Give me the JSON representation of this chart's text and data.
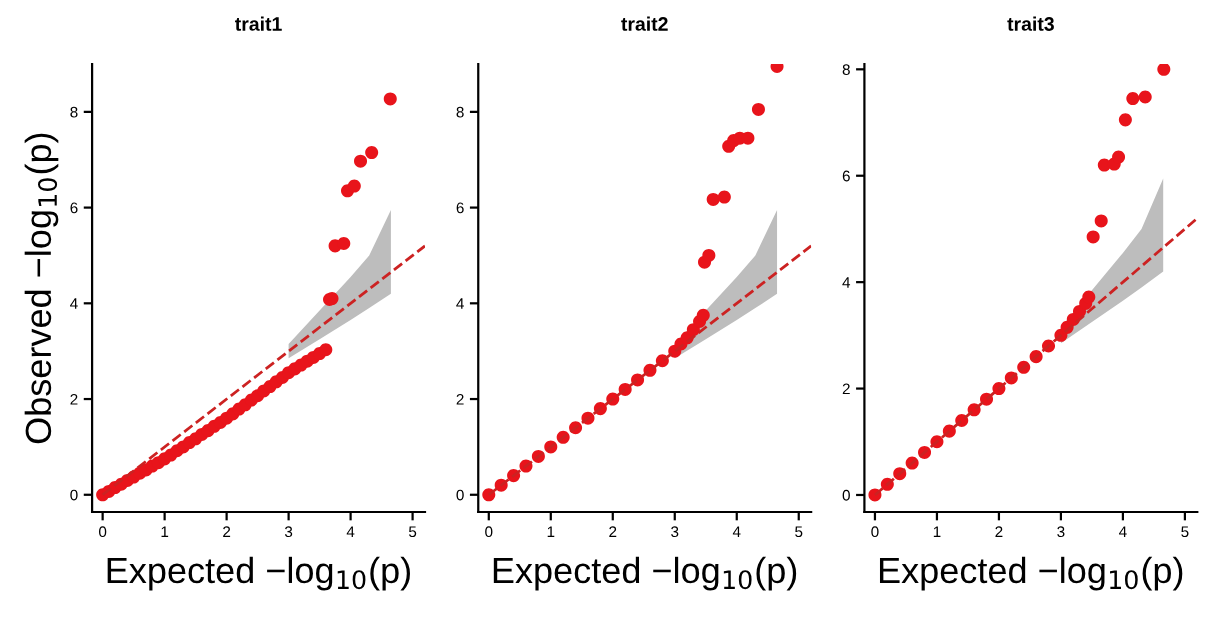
{
  "chart_data": [
    {
      "type": "scatter",
      "title": "trait1",
      "xlabel": "Expected −log$_{10}$(p)",
      "ylabel": "Observed −log$_{10}$(p)",
      "xlim": [
        -0.17,
        5.2
      ],
      "ylim": [
        -0.36,
        9.0
      ],
      "xticks": [
        0,
        1,
        2,
        3,
        4,
        5
      ],
      "yticks": [
        0,
        2,
        4,
        6,
        8
      ],
      "marker": "circle",
      "series": [
        {
          "type": "line",
          "color": "#cc2222",
          "line_style": "dashed",
          "marker": "none",
          "x": [
            0,
            3.0,
            3.5,
            4.0,
            4.3,
            4.65,
            5.2
          ],
          "values": [
            0,
            3.0,
            3.5,
            4.0,
            4.3,
            4.65,
            5.2
          ],
          "lower": [
            null,
            2.85,
            3.25,
            3.65,
            3.9,
            4.2,
            null
          ],
          "upper": [
            null,
            3.15,
            3.85,
            4.55,
            5.0,
            5.95,
            null
          ]
        },
        {
          "type": "scatter",
          "color": "#e8141b",
          "x": [
            0,
            0.1,
            0.2,
            0.3,
            0.4,
            0.5,
            0.6,
            0.7,
            0.8,
            0.9,
            1.0,
            1.1,
            1.2,
            1.3,
            1.4,
            1.5,
            1.6,
            1.7,
            1.8,
            1.9,
            2.0,
            2.1,
            2.2,
            2.3,
            2.4,
            2.5,
            2.6,
            2.7,
            2.8,
            2.9,
            3.0,
            3.1,
            3.2,
            3.3,
            3.4,
            3.5,
            3.6,
            3.66,
            3.7,
            3.75,
            3.89,
            3.95,
            4.06,
            4.16,
            4.34,
            4.64
          ],
          "values": [
            0,
            0.07,
            0.15,
            0.22,
            0.3,
            0.37,
            0.45,
            0.52,
            0.6,
            0.67,
            0.75,
            0.83,
            0.92,
            1.0,
            1.09,
            1.17,
            1.26,
            1.34,
            1.43,
            1.51,
            1.6,
            1.69,
            1.79,
            1.88,
            1.98,
            2.07,
            2.17,
            2.26,
            2.36,
            2.45,
            2.55,
            2.63,
            2.71,
            2.79,
            2.87,
            2.95,
            3.03,
            4.08,
            4.1,
            5.2,
            5.25,
            6.35,
            6.45,
            6.97,
            7.15,
            8.27
          ]
        }
      ]
    },
    {
      "type": "scatter",
      "title": "trait2",
      "xlabel": "Expected −log$_{10}$(p)",
      "xlim": [
        -0.17,
        5.2
      ],
      "ylim": [
        -0.36,
        9.0
      ],
      "xticks": [
        0,
        1,
        2,
        3,
        4,
        5
      ],
      "yticks": [
        0,
        2,
        4,
        6,
        8
      ],
      "marker": "circle",
      "series": [
        {
          "type": "line",
          "color": "#cc2222",
          "line_style": "dashed",
          "marker": "none",
          "x": [
            0,
            3.0,
            3.5,
            4.0,
            4.3,
            4.65,
            5.2
          ],
          "values": [
            0,
            3.0,
            3.5,
            4.0,
            4.3,
            4.65,
            5.2
          ],
          "lower": [
            null,
            2.85,
            3.25,
            3.65,
            3.9,
            4.2,
            null
          ],
          "upper": [
            null,
            3.15,
            3.85,
            4.55,
            5.0,
            5.95,
            null
          ]
        },
        {
          "type": "scatter",
          "color": "#e8141b",
          "x": [
            0,
            0.2,
            0.4,
            0.6,
            0.8,
            1.0,
            1.2,
            1.4,
            1.6,
            1.8,
            2.0,
            2.2,
            2.4,
            2.6,
            2.8,
            3.0,
            3.1,
            3.2,
            3.3,
            3.4,
            3.46,
            3.48,
            3.55,
            3.62,
            3.8,
            3.87,
            3.95,
            4.05,
            4.18,
            4.35,
            4.65
          ],
          "values": [
            0,
            0.2,
            0.4,
            0.6,
            0.8,
            1.0,
            1.2,
            1.4,
            1.6,
            1.8,
            2.0,
            2.2,
            2.4,
            2.6,
            2.8,
            3.0,
            3.15,
            3.28,
            3.45,
            3.62,
            3.75,
            4.86,
            5.0,
            6.17,
            6.22,
            7.28,
            7.4,
            7.45,
            7.45,
            8.05,
            8.95
          ]
        }
      ]
    },
    {
      "type": "scatter",
      "title": "trait3",
      "xlabel": "Expected −log$_{10}$(p)",
      "xlim": [
        -0.17,
        5.2
      ],
      "ylim": [
        -0.32,
        8.1
      ],
      "xticks": [
        0,
        1,
        2,
        3,
        4,
        5
      ],
      "yticks": [
        0,
        2,
        4,
        6,
        8
      ],
      "marker": "circle",
      "series": [
        {
          "type": "line",
          "color": "#cc2222",
          "line_style": "dashed",
          "marker": "none",
          "x": [
            0,
            3.0,
            3.5,
            4.0,
            4.3,
            4.65,
            5.2
          ],
          "values": [
            0,
            3.0,
            3.5,
            4.0,
            4.3,
            4.65,
            5.2
          ],
          "lower": [
            null,
            2.85,
            3.25,
            3.65,
            3.9,
            4.2,
            null
          ],
          "upper": [
            null,
            3.15,
            3.85,
            4.55,
            5.0,
            5.95,
            null
          ]
        },
        {
          "type": "scatter",
          "color": "#e8141b",
          "x": [
            0,
            0.2,
            0.4,
            0.6,
            0.8,
            1.0,
            1.2,
            1.4,
            1.6,
            1.8,
            2.0,
            2.2,
            2.4,
            2.6,
            2.8,
            3.0,
            3.1,
            3.2,
            3.3,
            3.4,
            3.45,
            3.52,
            3.65,
            3.7,
            3.86,
            3.93,
            4.04,
            4.16,
            4.36,
            4.66
          ],
          "values": [
            0,
            0.2,
            0.4,
            0.6,
            0.8,
            1.0,
            1.2,
            1.4,
            1.6,
            1.8,
            2.0,
            2.2,
            2.4,
            2.6,
            2.8,
            3.0,
            3.15,
            3.3,
            3.45,
            3.6,
            3.72,
            4.85,
            5.15,
            6.2,
            6.22,
            6.35,
            7.05,
            7.45,
            7.48,
            8.0
          ]
        }
      ]
    }
  ]
}
